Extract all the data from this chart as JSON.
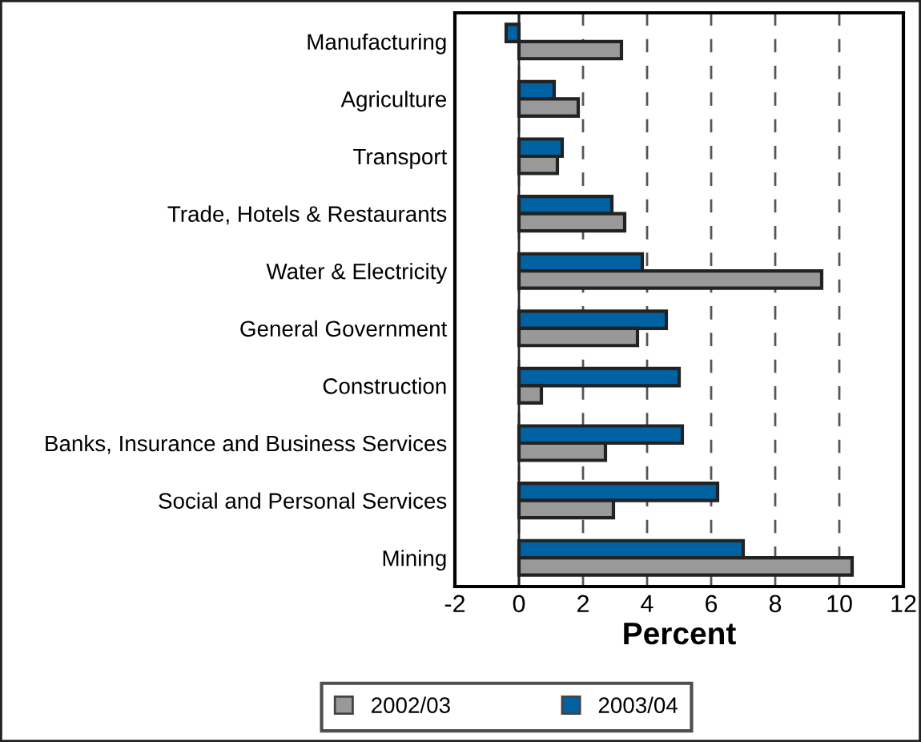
{
  "chart_data": {
    "type": "bar",
    "orientation": "horizontal",
    "xlabel": "Percent",
    "categories": [
      "Manufacturing",
      "Agriculture",
      "Transport",
      "Trade, Hotels & Restaurants",
      "Water & Electricity",
      "General Government",
      "Construction",
      "Banks, Insurance and Business Services",
      "Social and Personal Services",
      "Mining"
    ],
    "series": [
      {
        "name": "2003/04",
        "color": "#0062a3",
        "values": [
          -0.4,
          1.1,
          1.35,
          2.9,
          3.85,
          4.6,
          5.0,
          5.1,
          6.2,
          7.0
        ]
      },
      {
        "name": "2002/03",
        "color": "#999999",
        "values": [
          3.2,
          1.85,
          1.2,
          3.3,
          9.45,
          3.7,
          0.7,
          2.7,
          2.95,
          10.4
        ]
      }
    ],
    "xlim": [
      -2,
      12
    ],
    "xticks": [
      -2,
      0,
      2,
      4,
      6,
      8,
      10,
      12
    ],
    "grid": "x",
    "legend": "bottom"
  }
}
